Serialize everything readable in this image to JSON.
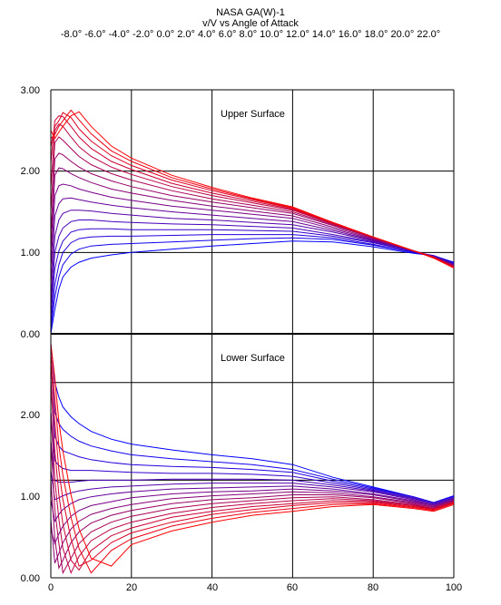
{
  "chart_data": {
    "type": "line",
    "title": "NASA GA(W)-1",
    "subtitle": "v/V vs Angle of Attack",
    "alpha_labels": "-8.0° -6.0° -4.0° -2.0° 0.0° 2.0° 4.0° 6.0° 8.0° 10.0° 12.0° 14.0° 16.0° 18.0° 20.0° 22.0°",
    "alphas": [
      -8,
      -6,
      -4,
      -2,
      0,
      2,
      4,
      6,
      8,
      10,
      12,
      14,
      16,
      18,
      20,
      22
    ],
    "xlabel": "",
    "ylabel": "",
    "xlim": [
      0,
      100
    ],
    "xticks": [
      "0",
      "20",
      "40",
      "60",
      "80",
      "100"
    ],
    "upper_yticks": [
      "3.00",
      "2.00",
      "1.00",
      "0.00"
    ],
    "lower_yticks": [
      "2.00",
      "1.00",
      "0.00"
    ],
    "grid": true,
    "colors": {
      "low_alpha": "#0000ff",
      "high_alpha": "#ff0000"
    },
    "panels": [
      {
        "name": "Upper Surface",
        "ylim": [
          0,
          3
        ],
        "x": [
          0,
          1,
          2,
          3,
          5,
          7,
          10,
          15,
          20,
          30,
          40,
          50,
          60,
          70,
          80,
          90,
          95,
          100
        ],
        "series_values": [
          [
            0.0,
            0.3,
            0.55,
            0.7,
            0.82,
            0.88,
            0.93,
            0.97,
            1.0,
            1.04,
            1.08,
            1.11,
            1.14,
            1.13,
            1.07,
            0.99,
            0.96,
            0.88
          ],
          [
            0.05,
            0.45,
            0.7,
            0.85,
            0.98,
            1.04,
            1.08,
            1.1,
            1.11,
            1.13,
            1.15,
            1.17,
            1.18,
            1.16,
            1.09,
            1.0,
            0.96,
            0.87
          ],
          [
            0.1,
            0.6,
            0.85,
            1.0,
            1.12,
            1.17,
            1.19,
            1.2,
            1.2,
            1.21,
            1.22,
            1.22,
            1.22,
            1.18,
            1.1,
            1.0,
            0.96,
            0.87
          ],
          [
            0.2,
            0.8,
            1.02,
            1.14,
            1.25,
            1.28,
            1.29,
            1.29,
            1.28,
            1.28,
            1.28,
            1.27,
            1.26,
            1.2,
            1.12,
            1.01,
            0.96,
            0.86
          ],
          [
            0.3,
            1.0,
            1.2,
            1.3,
            1.38,
            1.4,
            1.4,
            1.38,
            1.37,
            1.35,
            1.34,
            1.32,
            1.3,
            1.22,
            1.13,
            1.01,
            0.95,
            0.86
          ],
          [
            0.4,
            1.2,
            1.4,
            1.48,
            1.52,
            1.52,
            1.51,
            1.48,
            1.46,
            1.42,
            1.4,
            1.37,
            1.34,
            1.25,
            1.14,
            1.02,
            0.95,
            0.85
          ],
          [
            0.6,
            1.45,
            1.6,
            1.66,
            1.67,
            1.65,
            1.62,
            1.58,
            1.55,
            1.5,
            1.46,
            1.42,
            1.38,
            1.27,
            1.15,
            1.02,
            0.95,
            0.85
          ],
          [
            0.8,
            1.7,
            1.82,
            1.84,
            1.82,
            1.78,
            1.74,
            1.68,
            1.64,
            1.57,
            1.52,
            1.47,
            1.42,
            1.29,
            1.16,
            1.02,
            0.95,
            0.84
          ],
          [
            1.0,
            1.95,
            2.04,
            2.03,
            1.97,
            1.92,
            1.86,
            1.78,
            1.73,
            1.64,
            1.57,
            1.51,
            1.45,
            1.31,
            1.17,
            1.02,
            0.95,
            0.84
          ],
          [
            1.2,
            2.15,
            2.22,
            2.2,
            2.12,
            2.05,
            1.97,
            1.88,
            1.81,
            1.7,
            1.62,
            1.55,
            1.48,
            1.33,
            1.18,
            1.02,
            0.94,
            0.84
          ],
          [
            1.5,
            2.35,
            2.42,
            2.38,
            2.28,
            2.18,
            2.08,
            1.97,
            1.89,
            1.76,
            1.66,
            1.58,
            1.5,
            1.34,
            1.18,
            1.02,
            0.94,
            0.83
          ],
          [
            1.8,
            2.5,
            2.58,
            2.55,
            2.42,
            2.3,
            2.18,
            2.05,
            1.96,
            1.81,
            1.7,
            1.61,
            1.52,
            1.35,
            1.19,
            1.02,
            0.94,
            0.83
          ],
          [
            2.1,
            2.62,
            2.68,
            2.67,
            2.55,
            2.42,
            2.28,
            2.12,
            2.02,
            1.85,
            1.73,
            1.63,
            1.53,
            1.36,
            1.19,
            1.02,
            0.94,
            0.82
          ],
          [
            2.3,
            2.55,
            2.62,
            2.72,
            2.66,
            2.52,
            2.37,
            2.19,
            2.07,
            1.89,
            1.76,
            1.65,
            1.54,
            1.36,
            1.19,
            1.02,
            0.94,
            0.82
          ],
          [
            2.4,
            2.45,
            2.55,
            2.62,
            2.75,
            2.63,
            2.46,
            2.25,
            2.12,
            1.92,
            1.78,
            1.66,
            1.55,
            1.37,
            1.19,
            1.02,
            0.94,
            0.81
          ],
          [
            2.5,
            2.4,
            2.48,
            2.55,
            2.68,
            2.73,
            2.55,
            2.31,
            2.16,
            1.95,
            1.8,
            1.67,
            1.56,
            1.37,
            1.19,
            1.02,
            0.93,
            0.81
          ]
        ]
      },
      {
        "name": "Lower Surface",
        "ylim": [
          0,
          2.5
        ],
        "x": [
          0,
          1,
          2,
          3,
          5,
          7,
          10,
          15,
          20,
          30,
          40,
          50,
          60,
          70,
          80,
          90,
          95,
          100
        ],
        "series_values": [
          [
            2.4,
            2.0,
            1.85,
            1.75,
            1.65,
            1.58,
            1.5,
            1.42,
            1.37,
            1.31,
            1.26,
            1.22,
            1.16,
            1.03,
            0.93,
            0.83,
            0.77,
            0.84
          ],
          [
            2.2,
            1.7,
            1.58,
            1.52,
            1.45,
            1.4,
            1.35,
            1.3,
            1.26,
            1.22,
            1.19,
            1.16,
            1.11,
            1.01,
            0.92,
            0.83,
            0.77,
            0.84
          ],
          [
            2.0,
            1.45,
            1.35,
            1.3,
            1.27,
            1.24,
            1.21,
            1.18,
            1.16,
            1.14,
            1.13,
            1.11,
            1.08,
            0.99,
            0.91,
            0.83,
            0.77,
            0.83
          ],
          [
            1.7,
            1.2,
            1.15,
            1.12,
            1.1,
            1.1,
            1.1,
            1.09,
            1.08,
            1.07,
            1.07,
            1.06,
            1.04,
            0.97,
            0.9,
            0.82,
            0.76,
            0.82
          ],
          [
            1.4,
            1.0,
            0.98,
            0.98,
            0.98,
            0.99,
            1.0,
            1.0,
            1.0,
            1.01,
            1.01,
            1.01,
            1.0,
            0.95,
            0.89,
            0.81,
            0.76,
            0.82
          ],
          [
            1.1,
            0.8,
            0.82,
            0.84,
            0.87,
            0.89,
            0.91,
            0.93,
            0.94,
            0.96,
            0.97,
            0.97,
            0.97,
            0.93,
            0.88,
            0.8,
            0.75,
            0.81
          ],
          [
            0.8,
            0.58,
            0.65,
            0.7,
            0.76,
            0.8,
            0.83,
            0.86,
            0.88,
            0.91,
            0.92,
            0.93,
            0.94,
            0.91,
            0.86,
            0.79,
            0.74,
            0.8
          ],
          [
            0.5,
            0.35,
            0.45,
            0.53,
            0.63,
            0.69,
            0.74,
            0.78,
            0.82,
            0.86,
            0.88,
            0.89,
            0.91,
            0.89,
            0.85,
            0.78,
            0.74,
            0.8
          ],
          [
            0.6,
            0.15,
            0.25,
            0.36,
            0.5,
            0.58,
            0.65,
            0.71,
            0.75,
            0.81,
            0.84,
            0.86,
            0.88,
            0.87,
            0.83,
            0.77,
            0.73,
            0.79
          ],
          [
            1.0,
            0.4,
            0.1,
            0.18,
            0.36,
            0.47,
            0.56,
            0.64,
            0.69,
            0.76,
            0.8,
            0.82,
            0.85,
            0.85,
            0.82,
            0.76,
            0.72,
            0.79
          ],
          [
            1.4,
            0.7,
            0.35,
            0.05,
            0.2,
            0.35,
            0.47,
            0.57,
            0.63,
            0.71,
            0.76,
            0.79,
            0.82,
            0.83,
            0.8,
            0.75,
            0.71,
            0.78
          ],
          [
            1.7,
            1.0,
            0.6,
            0.3,
            0.05,
            0.22,
            0.38,
            0.5,
            0.57,
            0.66,
            0.72,
            0.76,
            0.79,
            0.81,
            0.79,
            0.74,
            0.71,
            0.78
          ],
          [
            2.0,
            1.3,
            0.85,
            0.55,
            0.18,
            0.08,
            0.28,
            0.43,
            0.51,
            0.62,
            0.68,
            0.73,
            0.76,
            0.79,
            0.78,
            0.74,
            0.7,
            0.77
          ],
          [
            2.2,
            1.6,
            1.1,
            0.8,
            0.4,
            0.12,
            0.18,
            0.36,
            0.46,
            0.57,
            0.65,
            0.7,
            0.74,
            0.77,
            0.77,
            0.73,
            0.7,
            0.77
          ],
          [
            2.3,
            1.85,
            1.35,
            1.05,
            0.62,
            0.3,
            0.05,
            0.28,
            0.4,
            0.53,
            0.61,
            0.67,
            0.71,
            0.75,
            0.76,
            0.72,
            0.69,
            0.76
          ],
          [
            2.4,
            2.05,
            1.6,
            1.3,
            0.85,
            0.5,
            0.2,
            0.12,
            0.34,
            0.48,
            0.57,
            0.64,
            0.68,
            0.73,
            0.75,
            0.71,
            0.68,
            0.75
          ]
        ]
      }
    ]
  }
}
